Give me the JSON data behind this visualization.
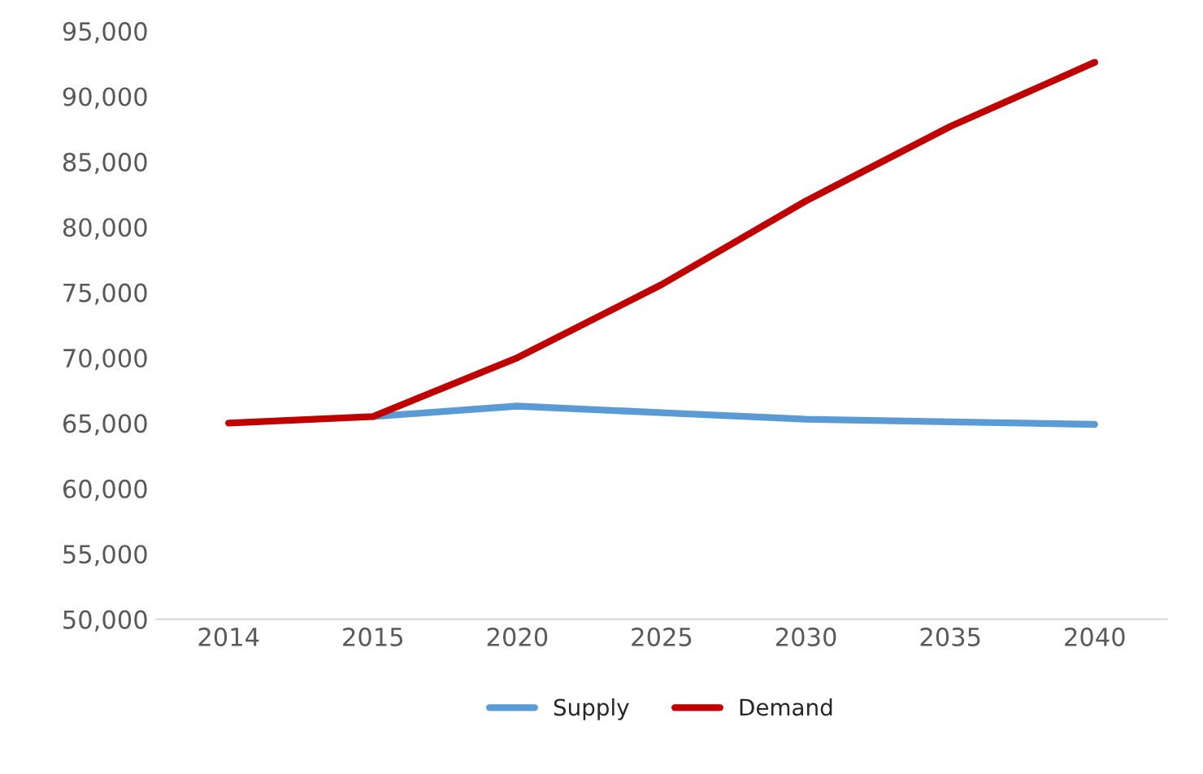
{
  "chart_data": {
    "type": "line",
    "categories": [
      "2014",
      "2015",
      "2020",
      "2025",
      "2030",
      "2035",
      "2040"
    ],
    "series": [
      {
        "name": "Supply",
        "color": "#5b9bd5",
        "values": [
          null,
          65500,
          66300,
          65800,
          65300,
          65100,
          64900
        ]
      },
      {
        "name": "Demand",
        "color": "#c00000",
        "values": [
          65000,
          65500,
          70000,
          75600,
          82000,
          87700,
          92600
        ]
      }
    ],
    "ylim": [
      50000,
      95000
    ],
    "yticks": [
      {
        "value": 50000,
        "label": "50,000"
      },
      {
        "value": 55000,
        "label": "55,000"
      },
      {
        "value": 60000,
        "label": "60,000"
      },
      {
        "value": 65000,
        "label": "65,000"
      },
      {
        "value": 70000,
        "label": "70,000"
      },
      {
        "value": 75000,
        "label": "75,000"
      },
      {
        "value": 80000,
        "label": "80,000"
      },
      {
        "value": 85000,
        "label": "85,000"
      },
      {
        "value": 90000,
        "label": "90,000"
      },
      {
        "value": 95000,
        "label": "95,000"
      }
    ],
    "grid": false,
    "legend": "bottom",
    "marker": "none",
    "line_style": "solid"
  }
}
